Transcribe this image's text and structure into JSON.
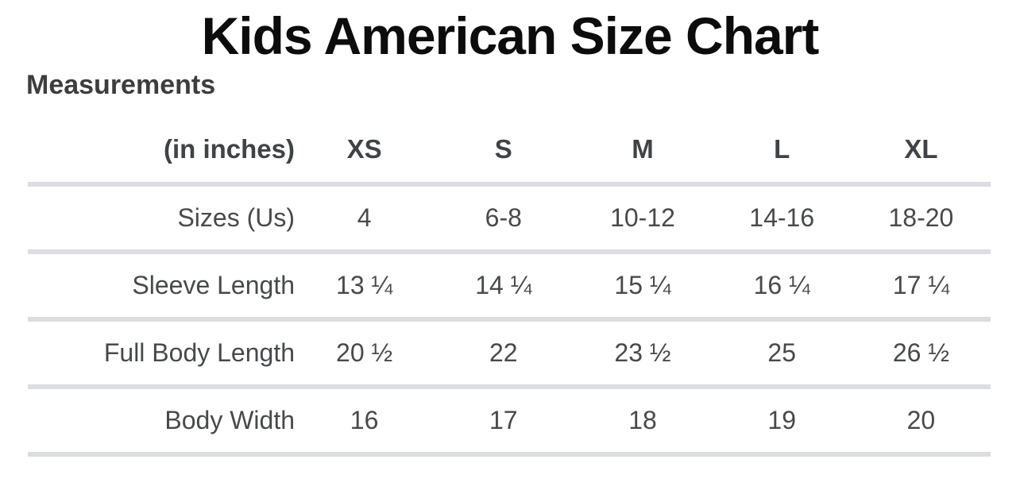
{
  "title": "Kids American Size Chart",
  "section_heading": "Measurements",
  "table": {
    "header": [
      "(in inches)",
      "XS",
      "S",
      "M",
      "L",
      "XL"
    ],
    "rows": [
      {
        "label": "Sizes (Us)",
        "values": [
          "4",
          "6-8",
          "10-12",
          "14-16",
          "18-20"
        ]
      },
      {
        "label": "Sleeve Length",
        "values": [
          "13 ¼",
          "14 ¼",
          "15 ¼",
          "16 ¼",
          "17 ¼"
        ]
      },
      {
        "label": "Full Body Length",
        "values": [
          "20 ½",
          "22",
          "23 ½",
          "25",
          "26 ½"
        ]
      },
      {
        "label": "Body Width",
        "values": [
          "16",
          "17",
          "18",
          "19",
          "20"
        ]
      }
    ]
  },
  "colors": {
    "background": "#ffffff",
    "title_text": "#0c0c0c",
    "heading_text": "#3d3d3d",
    "header_text": "#404346",
    "body_text": "#47494b",
    "divider": "#dcdde0"
  }
}
